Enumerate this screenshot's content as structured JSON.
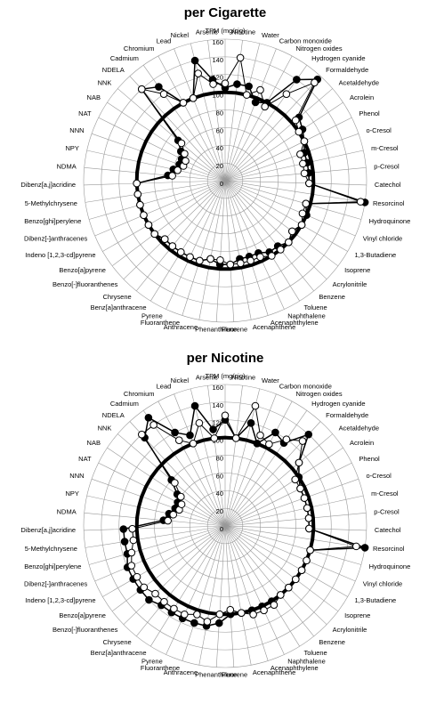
{
  "chart_data": [
    {
      "type": "radar",
      "title": "per Cigarette",
      "categories": [
        "TPM (mg/cig)",
        "Nicotine",
        "Water",
        "Carbon monoxide",
        "Nitrogen oxides",
        "Hydrogen cyanide",
        "Formaldehyde",
        "Acetaldehyde",
        "Acrolein",
        "Phenol",
        "o-Cresol",
        "m-Cresol",
        "p-Cresol",
        "Catechol",
        "Resorcinol",
        "Hydroquinone",
        "Vinyl chloride",
        "1,3-Butadiene",
        "Isoprene",
        "Acrylonitrile",
        "Benzene",
        "Toluene",
        "Naphthalene",
        "Acenaphthylene",
        "Acenaphthene",
        "Fluorene",
        "Phenanthrene",
        "Anthracene",
        "Fluoranthene",
        "Pyrene",
        "Benz[a]anthracene",
        "Chrysene",
        "Benzo[-]fluoranthenes",
        "Benzo[a]pyrene",
        "Indeno [1,2,3-cd]pyrene",
        "Dibenz[-]anthracenes",
        "Benzo[ghi]perylene",
        "5-Methylchrysene",
        "Dibenz[a,j]acridine",
        "NDMA",
        "NPY",
        "NNN",
        "NAT",
        "NAB",
        "NNK",
        "NDELA",
        "Cadmium",
        "Chromium",
        "Lead",
        "Nickel",
        "Arsenic"
      ],
      "ylim": [
        0,
        160
      ],
      "yticks": [
        0,
        20,
        40,
        60,
        80,
        100,
        120,
        140,
        160
      ],
      "series": [
        {
          "color": "#000000",
          "marker": "none",
          "width": 4,
          "values": [
            100,
            100,
            100,
            100,
            100,
            100,
            100,
            100,
            100,
            100,
            100,
            100,
            100,
            100,
            100,
            100,
            100,
            100,
            100,
            100,
            100,
            100,
            100,
            100,
            100,
            100,
            100,
            100,
            100,
            100,
            100,
            100,
            100,
            100,
            100,
            100,
            100,
            100,
            100,
            100,
            100,
            100,
            100,
            100,
            100,
            100,
            100,
            100,
            100,
            100,
            100
          ]
        },
        {
          "color": "#000000",
          "marker": "filled",
          "width": 1.5,
          "values": [
            105,
            110,
            110,
            95,
            100,
            140,
            155,
            110,
            105,
            100,
            95,
            95,
            95,
            95,
            160,
            95,
            100,
            100,
            95,
            100,
            95,
            95,
            90,
            90,
            90,
            95,
            95,
            90,
            95,
            95,
            95,
            95,
            95,
            100,
            100,
            100,
            100,
            100,
            100,
            65,
            60,
            55,
            55,
            60,
            70,
            140,
            130,
            100,
            100,
            140,
            115
          ]
        },
        {
          "color": "#000000",
          "marker": "open",
          "width": 1,
          "values": [
            110,
            140,
            100,
            110,
            95,
            120,
            150,
            105,
            100,
            100,
            90,
            90,
            90,
            95,
            155,
            95,
            95,
            100,
            95,
            100,
            100,
            100,
            95,
            95,
            95,
            95,
            90,
            90,
            95,
            95,
            95,
            95,
            95,
            100,
            100,
            100,
            100,
            100,
            100,
            60,
            55,
            50,
            50,
            55,
            65,
            140,
            120,
            100,
            100,
            125,
            110
          ]
        }
      ]
    },
    {
      "type": "radar",
      "title": "per Nicotine",
      "categories": [
        "TPM (mg/cig)",
        "Nicotine",
        "Water",
        "Carbon monoxide",
        "Nitrogen oxides",
        "Hydrogen cyanide",
        "Formaldehyde",
        "Acetaldehyde",
        "Acrolein",
        "Phenol",
        "o-Cresol",
        "m-Cresol",
        "p-Cresol",
        "Catechol",
        "Resorcinol",
        "Hydroquinone",
        "Vinyl chloride",
        "1,3-Butadiene",
        "Isoprene",
        "Acrylonitrile",
        "Benzene",
        "Toluene",
        "Naphthalene",
        "Acenaphthylene",
        "Acenaphthene",
        "Fluorene",
        "Phenanthrene",
        "Anthracene",
        "Fluoranthene",
        "Pyrene",
        "Benz[a]anthracene",
        "Chrysene",
        "Benzo[-]fluoranthenes",
        "Benzo[a]pyrene",
        "Indeno [1,2,3-cd]pyrene",
        "Dibenz[-]anthracenes",
        "Benzo[ghi]perylene",
        "5-Methylchrysene",
        "Dibenz[a,j]acridine",
        "NDMA",
        "NPY",
        "NNN",
        "NAT",
        "NAB",
        "NNK",
        "NDELA",
        "Cadmium",
        "Chromium",
        "Lead",
        "Nickel",
        "Arsenic"
      ],
      "ylim": [
        0,
        160
      ],
      "yticks": [
        0,
        20,
        40,
        60,
        80,
        100,
        120,
        140,
        160
      ],
      "series": [
        {
          "color": "#000000",
          "marker": "none",
          "width": 4,
          "values": [
            100,
            100,
            100,
            100,
            100,
            100,
            100,
            100,
            100,
            100,
            100,
            100,
            100,
            100,
            100,
            100,
            100,
            100,
            100,
            100,
            100,
            100,
            100,
            100,
            100,
            100,
            100,
            100,
            100,
            100,
            100,
            100,
            100,
            100,
            100,
            100,
            100,
            100,
            100,
            100,
            100,
            100,
            100,
            100,
            100,
            100,
            100,
            100,
            100,
            100,
            100
          ]
        },
        {
          "color": "#000000",
          "marker": "filled",
          "width": 1.5,
          "values": [
            120,
            100,
            120,
            100,
            120,
            115,
            140,
            110,
            100,
            95,
            95,
            95,
            95,
            95,
            160,
            100,
            100,
            100,
            100,
            100,
            100,
            100,
            100,
            100,
            100,
            100,
            110,
            115,
            115,
            115,
            115,
            115,
            120,
            120,
            120,
            120,
            115,
            115,
            115,
            70,
            65,
            60,
            60,
            65,
            80,
            135,
            150,
            120,
            110,
            140,
            110
          ]
        },
        {
          "color": "#000000",
          "marker": "open",
          "width": 1,
          "values": [
            125,
            100,
            140,
            110,
            105,
            120,
            130,
            110,
            95,
            95,
            95,
            95,
            95,
            95,
            150,
            100,
            100,
            100,
            100,
            100,
            100,
            105,
            105,
            105,
            100,
            95,
            100,
            110,
            105,
            110,
            110,
            110,
            110,
            115,
            115,
            115,
            110,
            105,
            105,
            65,
            60,
            55,
            55,
            60,
            75,
            140,
            140,
            110,
            100,
            120,
            100
          ]
        }
      ]
    }
  ]
}
